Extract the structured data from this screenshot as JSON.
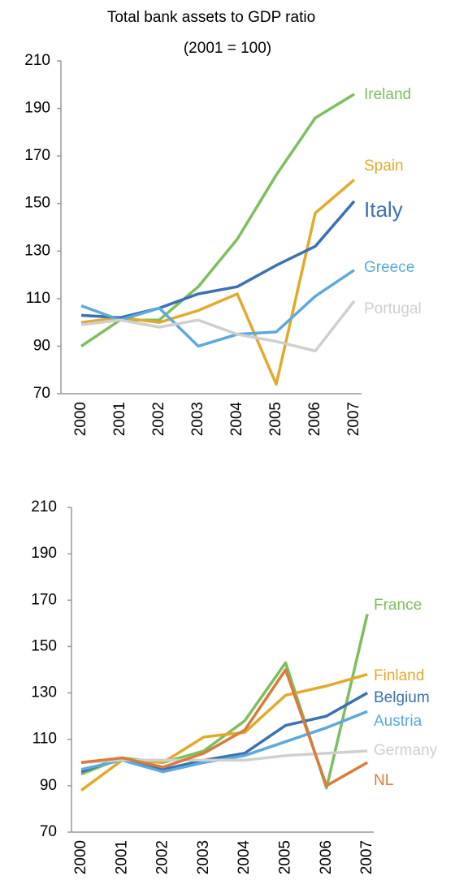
{
  "chart_data": [
    {
      "type": "line",
      "title": "Total bank assets to GDP ratio",
      "subtitle": "(2001 = 100)",
      "categories": [
        "2000",
        "2001",
        "2002",
        "2003",
        "2004",
        "2005",
        "2006",
        "2007"
      ],
      "ylim": [
        70,
        210
      ],
      "yticks": [
        70,
        90,
        110,
        130,
        150,
        170,
        190,
        210
      ],
      "series": [
        {
          "name": "Ireland",
          "color": "#7cbf5c",
          "values": [
            90,
            101,
            101,
            115,
            135,
            162,
            186,
            196
          ]
        },
        {
          "name": "Spain",
          "color": "#e1aa2b",
          "values": [
            100,
            102,
            100,
            105,
            112,
            74,
            146,
            160
          ]
        },
        {
          "name": "Italy",
          "color": "#3b70b1",
          "values": [
            103,
            102,
            106,
            112,
            115,
            124,
            132,
            151
          ]
        },
        {
          "name": "Greece",
          "color": "#5ba9dd",
          "values": [
            107,
            101,
            106,
            90,
            95,
            96,
            111,
            122
          ]
        },
        {
          "name": "Portugal",
          "color": "#cfcfcf",
          "values": [
            99,
            101,
            98,
            101,
            95,
            92,
            88,
            109
          ]
        }
      ]
    },
    {
      "type": "line",
      "categories": [
        "2000",
        "2001",
        "2002",
        "2003",
        "2004",
        "2005",
        "2006",
        "2007"
      ],
      "ylim": [
        70,
        210
      ],
      "yticks": [
        70,
        90,
        110,
        130,
        150,
        170,
        190,
        210
      ],
      "series": [
        {
          "name": "France",
          "color": "#7cbf5c",
          "values": [
            95,
            102,
            100,
            105,
            118,
            143,
            89,
            164
          ]
        },
        {
          "name": "Finland",
          "color": "#e1aa2b",
          "values": [
            88,
            101,
            100,
            111,
            113,
            129,
            133,
            138
          ]
        },
        {
          "name": "Belgium",
          "color": "#3b70b1",
          "values": [
            96,
            102,
            97,
            101,
            104,
            116,
            120,
            130
          ]
        },
        {
          "name": "Austria",
          "color": "#5ba9dd",
          "values": [
            97,
            101,
            96,
            100,
            103,
            109,
            115,
            122
          ]
        },
        {
          "name": "Germany",
          "color": "#cfcfcf",
          "values": [
            100,
            101,
            101,
            101,
            101,
            103,
            104,
            105
          ]
        },
        {
          "name": "NL",
          "color": "#d97b3b",
          "values": [
            100,
            102,
            98,
            104,
            114,
            140,
            90,
            100
          ]
        }
      ]
    }
  ]
}
